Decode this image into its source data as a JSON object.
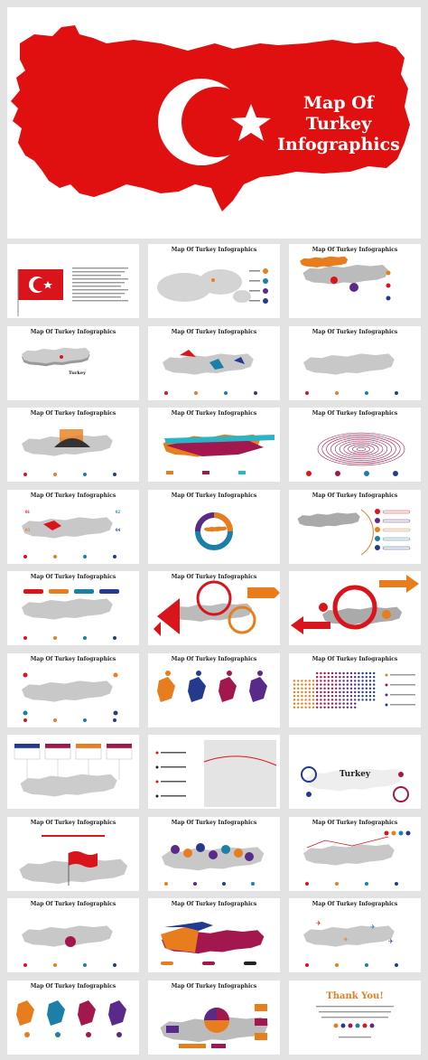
{
  "hero": {
    "title_lines": [
      "Map Of",
      "Turkey",
      "Infographics"
    ],
    "colors": {
      "map": "#e01010",
      "emblem": "#ffffff"
    }
  },
  "slides": [
    {
      "title": "",
      "kind": "flag-text"
    },
    {
      "title": "Map Of Turkey Infographics",
      "kind": "world"
    },
    {
      "title": "Map Of Turkey Infographics",
      "kind": "regions"
    },
    {
      "title": "Map Of Turkey Infographics",
      "kind": "3d-map",
      "label": "Turkey"
    },
    {
      "title": "Map Of Turkey Infographics",
      "kind": "cities"
    },
    {
      "title": "Map Of Turkey Infographics",
      "kind": "pins"
    },
    {
      "title": "Map Of Turkey Infographics",
      "kind": "landmarks"
    },
    {
      "title": "Map Of Turkey Infographics",
      "kind": "coastal"
    },
    {
      "title": "Map Of Turkey Infographics",
      "kind": "rings"
    },
    {
      "title": "Map Of Turkey Infographics",
      "kind": "callouts"
    },
    {
      "title": "Map Of Turkey Infographics",
      "kind": "donut"
    },
    {
      "title": "Map Of Turkey Infographics",
      "kind": "provinces"
    },
    {
      "title": "Map Of Turkey Infographics",
      "kind": "tabs"
    },
    {
      "title": "Map Of Turkey Infographics",
      "kind": "circles"
    },
    {
      "title": "",
      "kind": "arrows"
    },
    {
      "title": "Map Of Turkey Infographics",
      "kind": "map-pins"
    },
    {
      "title": "Map Of Turkey Infographics",
      "kind": "shapes"
    },
    {
      "title": "Map Of Turkey Infographics",
      "kind": "dots"
    },
    {
      "title": "",
      "kind": "boxes"
    },
    {
      "title": "",
      "kind": "pipelines"
    },
    {
      "title": "",
      "kind": "turkey-center",
      "label": "Turkey"
    },
    {
      "title": "Map Of Turkey Infographics",
      "kind": "flag-map"
    },
    {
      "title": "Map Of Turkey Infographics",
      "kind": "colored-provinces"
    },
    {
      "title": "Map Of Turkey Infographics",
      "kind": "social"
    },
    {
      "title": "Map Of Turkey Infographics",
      "kind": "gray-map"
    },
    {
      "title": "Map Of Turkey Infographics",
      "kind": "three-regions"
    },
    {
      "title": "Map Of Turkey Infographics",
      "kind": "planes"
    },
    {
      "title": "Map Of Turkey Infographics",
      "kind": "four-shapes"
    },
    {
      "title": "Map Of Turkey Infographics",
      "kind": "pie-map"
    },
    {
      "title": "",
      "kind": "thanks",
      "label": "Thank You!"
    }
  ],
  "palette": {
    "red": "#d9141b",
    "orange": "#e87d1e",
    "magenta": "#a3174f",
    "teal": "#1b7fa8",
    "purple": "#5a2a8a",
    "navy": "#253a8f",
    "gray": "#b8b8b8"
  }
}
